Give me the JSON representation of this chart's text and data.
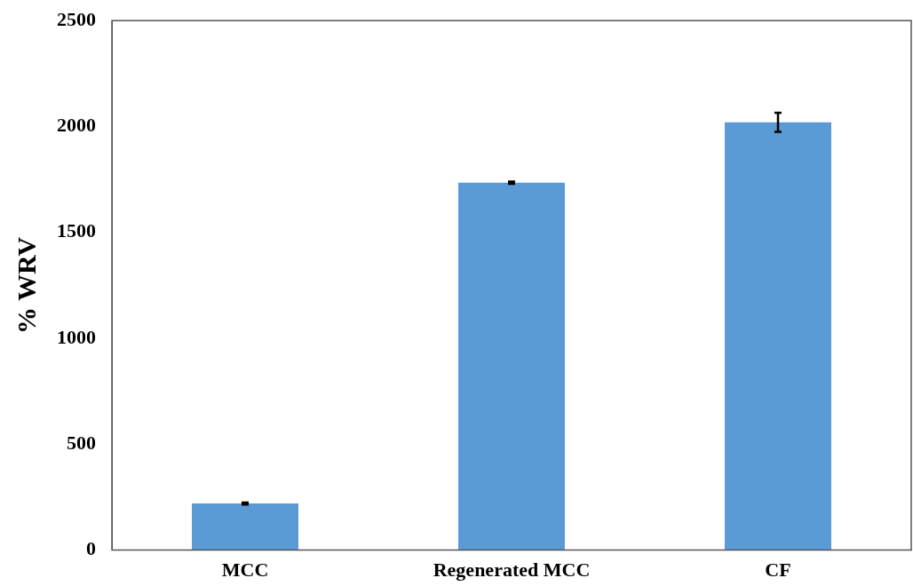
{
  "chart_data": {
    "type": "bar",
    "ylabel": "% WRV",
    "categories": [
      "MCC",
      "Regenerated MCC",
      "CF"
    ],
    "values": [
      220,
      1735,
      2020
    ],
    "errors": [
      5,
      5,
      45
    ],
    "color": "#5b9bd5",
    "ylim": [
      0,
      2500
    ],
    "yticks": [
      0,
      500,
      1000,
      1500,
      2000,
      2500
    ],
    "grid": false,
    "legend": false
  }
}
